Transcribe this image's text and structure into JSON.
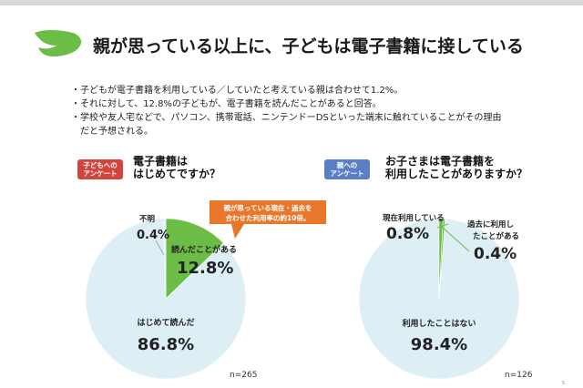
{
  "header": {
    "title": "親が思っている以上に、子どもは電子書籍に接している"
  },
  "bullets": [
    "子どもが電子書籍を利用している／していたと考えている親は合わせて1.2%。",
    "それに対して、12.8%の子どもが、電子書籍を読んだことがあると回答。",
    "学校や友人宅などで、パソコン、携帯電話、ニンテンドーDSといった端末に触れていることがその理由だと予想される。"
  ],
  "colors": {
    "accent_leaf": "#6cbd45",
    "pie_bg": "#deeef5",
    "green": "#6cbd45",
    "callout": "#e8772b",
    "badge_child": "#d0453d",
    "badge_parent": "#5b7fc5"
  },
  "icons": {
    "title_icon": "green-wing-icon"
  },
  "left_panel": {
    "badge": "子どもへの\nアンケート",
    "question": "電子書籍は\nはじめてですか？",
    "n": "n=265",
    "callout": "親が思っている現在・過去を\n合わせた利用率の約10倍。"
  },
  "right_panel": {
    "badge": "親への\nアンケート",
    "question": "お子さまは電子書籍を\n利用したことがありますか？",
    "n": "n=126"
  },
  "page_number": "5",
  "chart_data": [
    {
      "type": "pie",
      "title": "",
      "slices": [
        {
          "label": "読んだことがある",
          "value": 12.8,
          "display": "12.8%",
          "color": "#6cbd45"
        },
        {
          "label": "はじめて読んだ",
          "value": 86.8,
          "display": "86.8%",
          "color": "#deeef5"
        },
        {
          "label": "不明",
          "value": 0.4,
          "display": "0.4%",
          "color": "#deeef5"
        }
      ]
    },
    {
      "type": "pie",
      "title": "",
      "slices": [
        {
          "label": "現在利用している",
          "value": 0.8,
          "display": "0.8%",
          "color": "#6cbd45"
        },
        {
          "label": "過去に利用したことがある",
          "value": 0.4,
          "display": "0.4%",
          "color": "#6cbd45"
        },
        {
          "label": "利用したことはない",
          "value": 98.4,
          "display": "98.4%",
          "color": "#deeef5"
        }
      ]
    }
  ]
}
